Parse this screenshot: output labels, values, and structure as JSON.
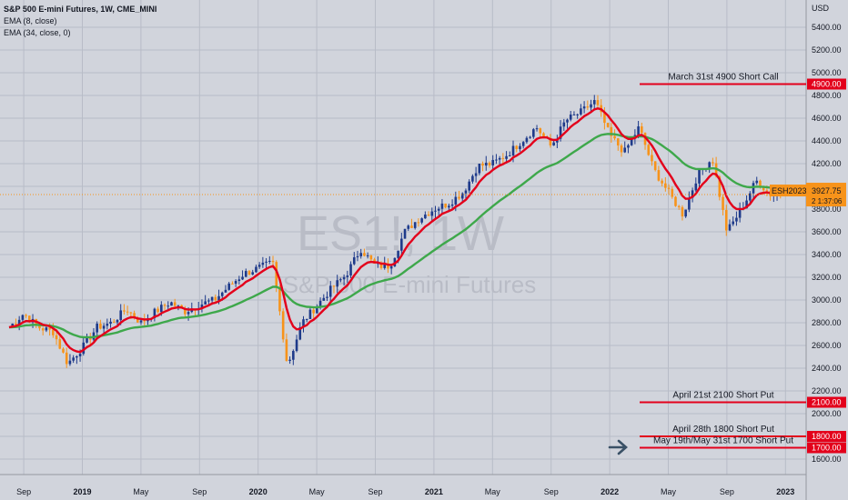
{
  "chart_title": "S&P 500 E-mini Futures, 1W, CME_MINI",
  "indicators": [
    "EMA (8, close)",
    "EMA (34, close, 0)"
  ],
  "watermark": {
    "symbol": "ES1!, 1W",
    "name": "S&P 500 E-mini Futures"
  },
  "colors": {
    "background": "#d1d4dc",
    "grid": "#b8bcc7",
    "up": "#1e3a8a",
    "down": "#f7931a",
    "ema_fast": "#e3001b",
    "ema_slow": "#3ea84b",
    "annotation": "#e3001b",
    "price_tag": "#f7931a"
  },
  "chart_data": {
    "type": "candlestick",
    "title": "S&P 500 E-mini Futures, 1W, CME_MINI",
    "currency": "USD",
    "x_ticks": [
      "Sep",
      "2019",
      "May",
      "Sep",
      "2020",
      "May",
      "Sep",
      "2021",
      "May",
      "Sep",
      "2022",
      "May",
      "Sep",
      "2023"
    ],
    "y_ticks": [
      5400,
      5200,
      5000,
      4800,
      4600,
      4400,
      4200,
      4000,
      3800,
      3600,
      3400,
      3200,
      3000,
      2800,
      2600,
      2400,
      2200,
      2000,
      1800,
      1600
    ],
    "ylim": [
      1540,
      5650
    ],
    "path_points": [
      [
        "2018-08",
        2760
      ],
      [
        "2018-09",
        2880
      ],
      [
        "2018-10",
        2760
      ],
      [
        "2018-11",
        2720
      ],
      [
        "2018-12",
        2440
      ],
      [
        "2019-01",
        2580
      ],
      [
        "2019-02",
        2760
      ],
      [
        "2019-03",
        2800
      ],
      [
        "2019-04",
        2920
      ],
      [
        "2019-05",
        2800
      ],
      [
        "2019-06",
        2900
      ],
      [
        "2019-07",
        2980
      ],
      [
        "2019-08",
        2900
      ],
      [
        "2019-09",
        2960
      ],
      [
        "2019-10",
        3000
      ],
      [
        "2019-11",
        3120
      ],
      [
        "2019-12",
        3230
      ],
      [
        "2020-01",
        3280
      ],
      [
        "2020-02",
        3330
      ],
      [
        "2020-03",
        2420
      ],
      [
        "2020-04",
        2800
      ],
      [
        "2020-05",
        2950
      ],
      [
        "2020-06",
        3100
      ],
      [
        "2020-07",
        3220
      ],
      [
        "2020-08",
        3450
      ],
      [
        "2020-09",
        3300
      ],
      [
        "2020-10",
        3300
      ],
      [
        "2020-11",
        3600
      ],
      [
        "2020-12",
        3720
      ],
      [
        "2021-01",
        3800
      ],
      [
        "2021-02",
        3850
      ],
      [
        "2021-03",
        3950
      ],
      [
        "2021-04",
        4180
      ],
      [
        "2021-05",
        4200
      ],
      [
        "2021-06",
        4280
      ],
      [
        "2021-07",
        4400
      ],
      [
        "2021-08",
        4520
      ],
      [
        "2021-09",
        4350
      ],
      [
        "2021-10",
        4580
      ],
      [
        "2021-11",
        4650
      ],
      [
        "2021-12",
        4750
      ],
      [
        "2022-01",
        4450
      ],
      [
        "2022-02",
        4300
      ],
      [
        "2022-03",
        4520
      ],
      [
        "2022-04",
        4150
      ],
      [
        "2022-05",
        3950
      ],
      [
        "2022-06",
        3750
      ],
      [
        "2022-07",
        4100
      ],
      [
        "2022-08",
        4250
      ],
      [
        "2022-09",
        3600
      ],
      [
        "2022-10",
        3800
      ],
      [
        "2022-11",
        4050
      ],
      [
        "2022-12",
        3928
      ]
    ],
    "last_price": {
      "symbol": "ESH2023",
      "price": "3927.75",
      "countdown": "2 1:37:06"
    },
    "annotations": [
      {
        "text": "March 31st 4900 Short Call",
        "price": 4900,
        "tag": "4900.00"
      },
      {
        "text": "April 21st 2100 Short Put",
        "price": 2100,
        "tag": "2100.00"
      },
      {
        "text": "April 28th 1800 Short Put",
        "price": 1800,
        "tag": "1800.00"
      },
      {
        "text": "May 19th/May 31st 1700 Short Put",
        "price": 1700,
        "tag": "1700.00"
      }
    ]
  }
}
